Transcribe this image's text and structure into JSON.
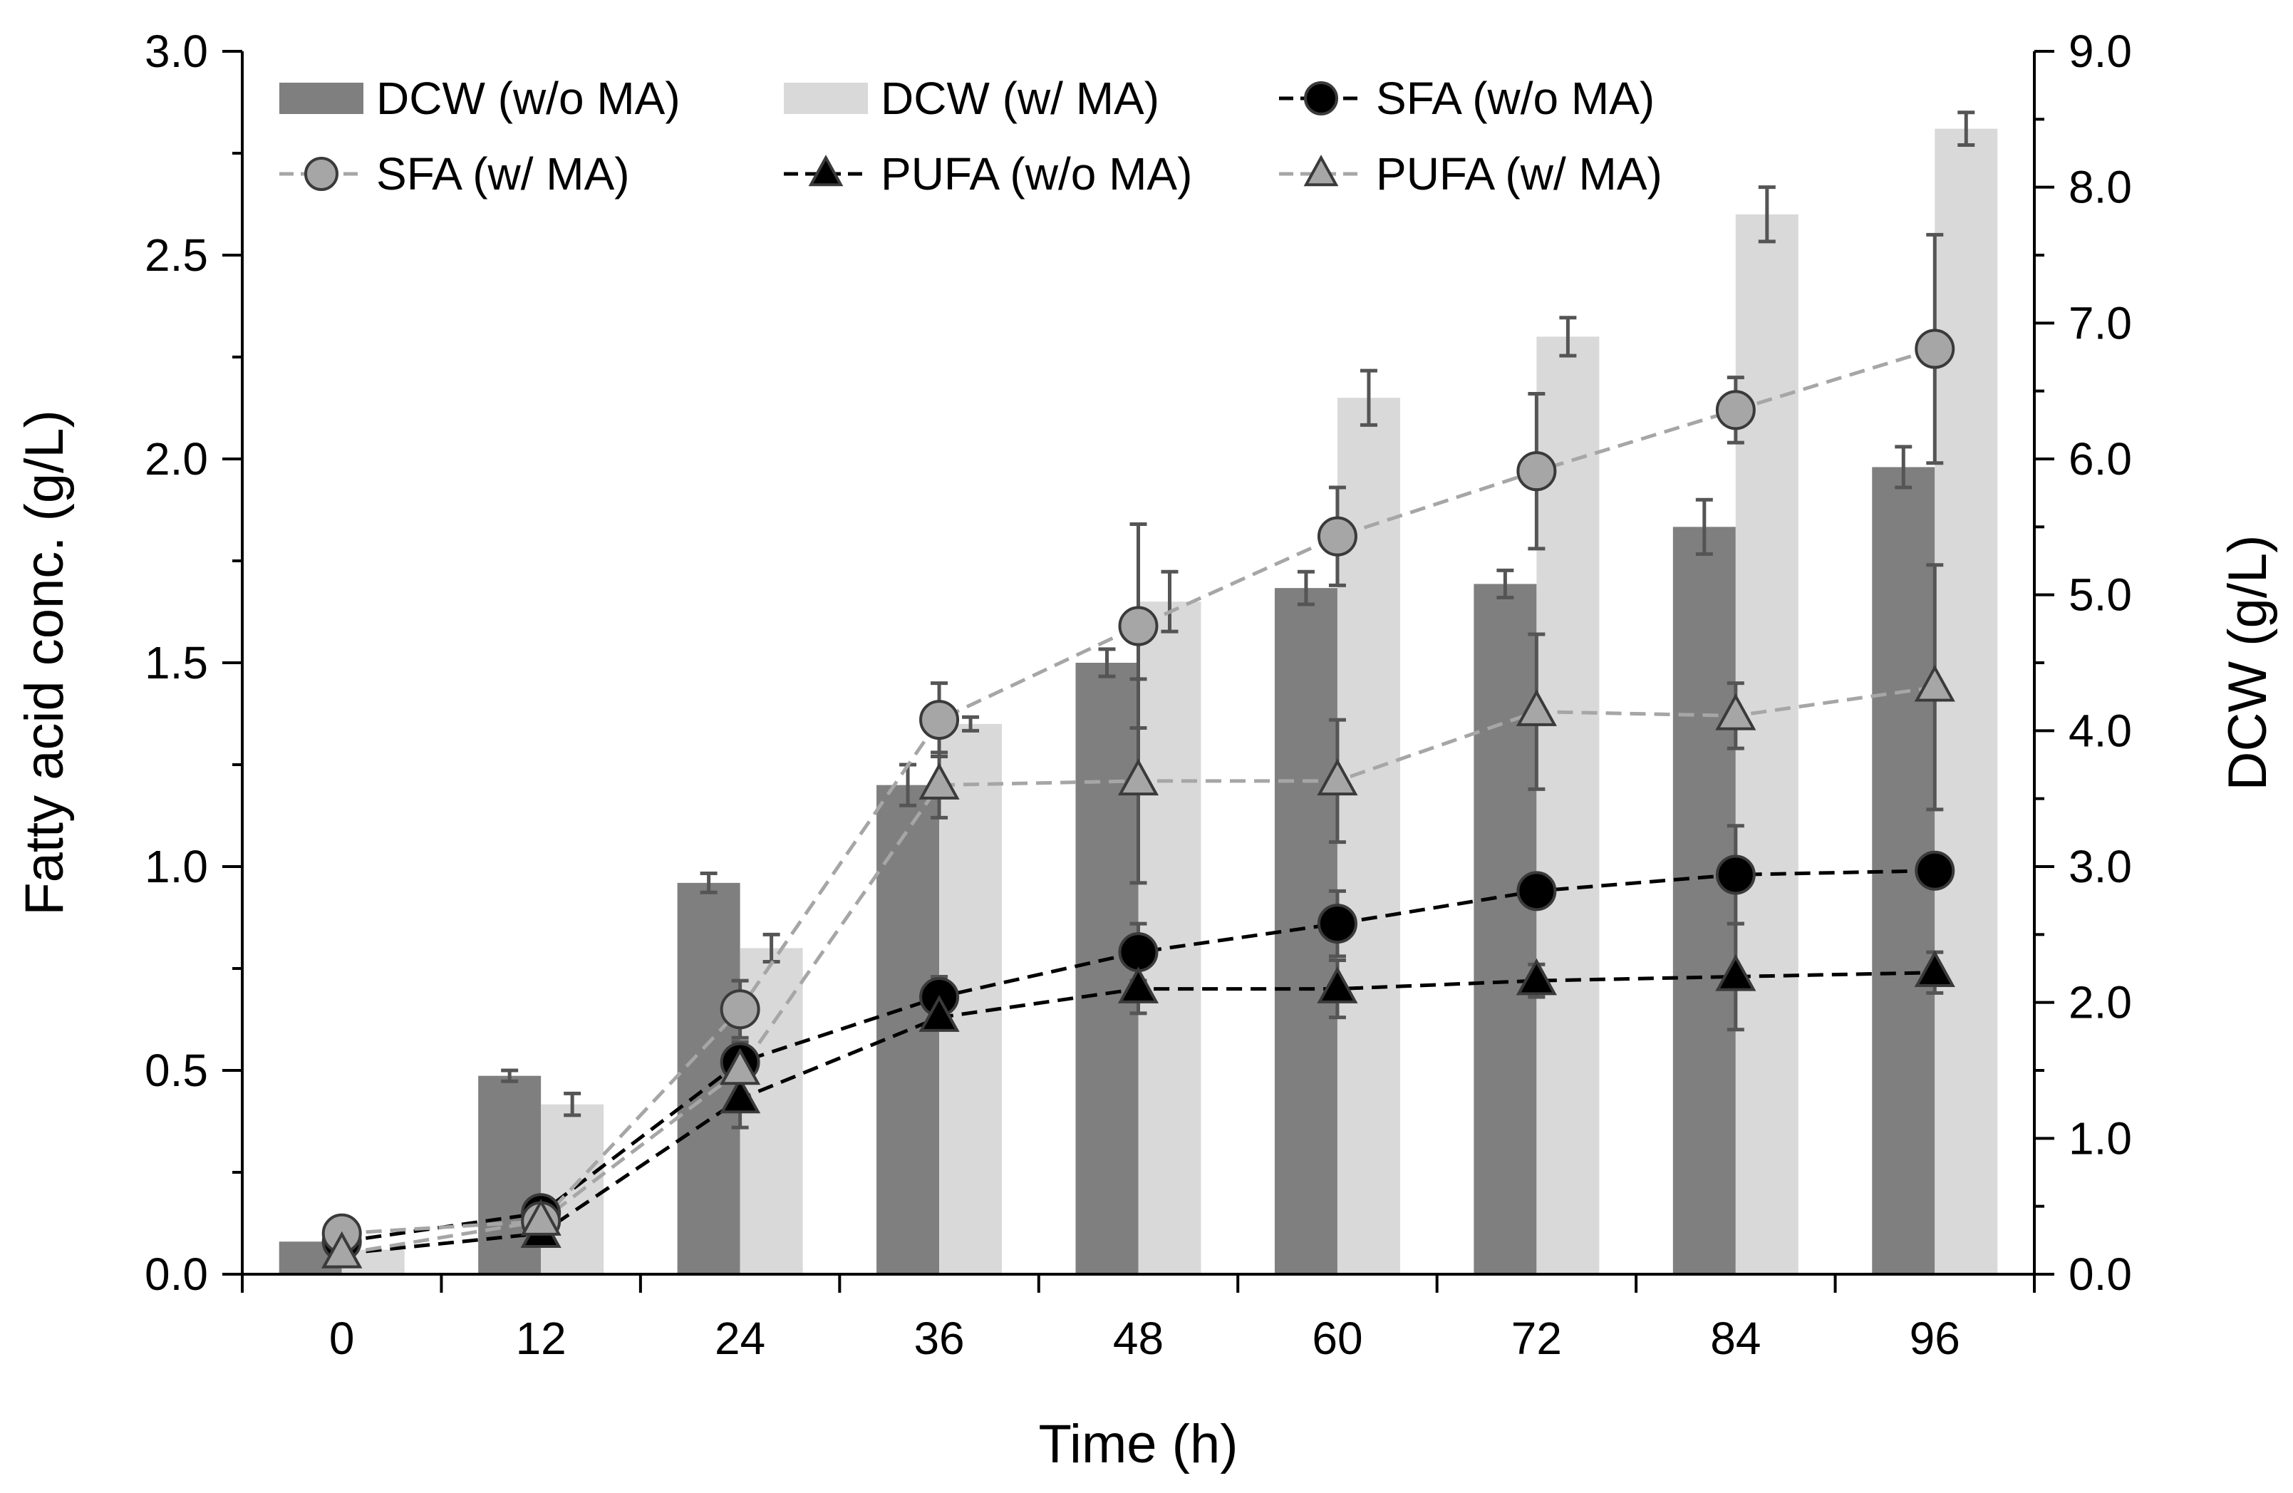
{
  "chart_data": {
    "type": "bar",
    "xlabel": "Time (h)",
    "ylabel": "Fatty acid conc. (g/L)",
    "y2label": "DCW (g/L)",
    "categories": [
      "0",
      "12",
      "24",
      "36",
      "48",
      "60",
      "72",
      "84",
      "96"
    ],
    "x": [
      0,
      12,
      24,
      36,
      48,
      60,
      72,
      84,
      96
    ],
    "ylim": [
      0,
      3.0
    ],
    "y2lim": [
      0,
      9.0
    ],
    "yticks": [
      "0.0",
      "0.5",
      "1.0",
      "1.5",
      "2.0",
      "2.5",
      "3.0"
    ],
    "y2ticks": [
      "0.0",
      "1.0",
      "2.0",
      "3.0",
      "4.0",
      "5.0",
      "6.0",
      "7.0",
      "8.0",
      "9.0"
    ],
    "legend_position": "top",
    "bar_series": [
      {
        "name": "DCW (w/o MA)",
        "axis": "right",
        "color": "#7f7f7f",
        "values": [
          0.24,
          1.46,
          2.88,
          3.6,
          4.5,
          5.05,
          5.08,
          5.5,
          5.94
        ],
        "errors": [
          0.0,
          0.04,
          0.07,
          0.15,
          0.1,
          0.12,
          0.1,
          0.2,
          0.15
        ]
      },
      {
        "name": "DCW (w/ MA)",
        "axis": "right",
        "color": "#d9d9d9",
        "values": [
          0.18,
          1.25,
          2.4,
          4.05,
          4.95,
          6.45,
          6.9,
          7.8,
          8.43
        ],
        "errors": [
          0.0,
          0.08,
          0.1,
          0.05,
          0.22,
          0.2,
          0.14,
          0.2,
          0.12
        ]
      }
    ],
    "line_series": [
      {
        "name": "SFA (w/o MA)",
        "marker": "circle",
        "color": "#000000",
        "line_color": "#000000",
        "values": [
          0.08,
          0.15,
          0.52,
          0.68,
          0.79,
          0.86,
          0.94,
          0.98,
          0.99
        ],
        "errors": [
          0.0,
          0.02,
          0.05,
          0.05,
          0.07,
          0.08,
          0.04,
          0.12,
          0.03
        ]
      },
      {
        "name": "SFA (w/ MA)",
        "marker": "circle",
        "color": "#a6a6a6",
        "line_color": "#a6a6a6",
        "values": [
          0.1,
          0.13,
          0.65,
          1.36,
          1.59,
          1.81,
          1.97,
          2.12,
          2.27
        ],
        "errors": [
          0.0,
          0.02,
          0.07,
          0.09,
          0.25,
          0.12,
          0.19,
          0.08,
          0.28
        ]
      },
      {
        "name": "PUFA (w/o MA)",
        "marker": "triangle",
        "color": "#000000",
        "line_color": "#000000",
        "values": [
          0.05,
          0.1,
          0.43,
          0.63,
          0.7,
          0.7,
          0.72,
          0.73,
          0.74
        ],
        "errors": [
          0.0,
          0.01,
          0.07,
          0.03,
          0.06,
          0.07,
          0.04,
          0.13,
          0.05
        ]
      },
      {
        "name": "PUFA (w/ MA)",
        "marker": "triangle",
        "color": "#a6a6a6",
        "line_color": "#a6a6a6",
        "values": [
          0.05,
          0.13,
          0.5,
          1.2,
          1.21,
          1.21,
          1.38,
          1.37,
          1.44
        ],
        "errors": [
          0.0,
          0.02,
          0.06,
          0.08,
          0.25,
          0.15,
          0.19,
          0.08,
          0.3
        ]
      }
    ]
  }
}
